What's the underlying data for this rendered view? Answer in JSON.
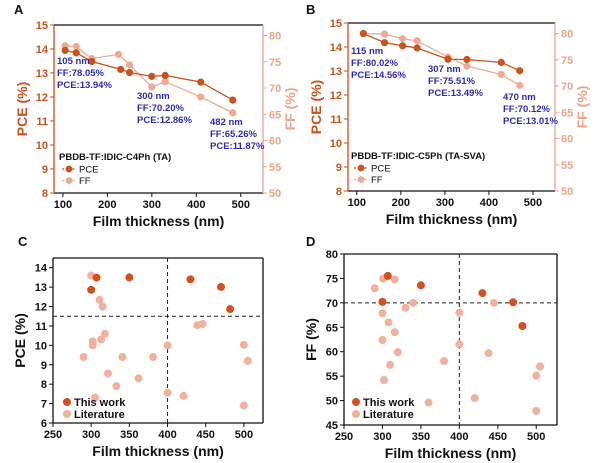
{
  "chart_data": [
    {
      "panel_label": "A",
      "type": "line",
      "xlabel": "Film thickness (nm)",
      "ylabel": "PCE (%)",
      "y2label": "FF (%)",
      "xlim": [
        80,
        550
      ],
      "ylim": [
        8,
        15
      ],
      "y2lim": [
        50,
        82
      ],
      "xticks": [
        100,
        200,
        300,
        400,
        500
      ],
      "yticks": [
        8,
        9,
        10,
        11,
        12,
        13,
        14,
        15
      ],
      "y2ticks": [
        50,
        55,
        60,
        65,
        70,
        75,
        80
      ],
      "legend_title": "PBDB-TF:IDIC-C4Ph (TA)",
      "legend": "bottom-left",
      "series": [
        {
          "name": "PCE",
          "axis": "left",
          "color": "#c9521f",
          "x": [
            105,
            130,
            165,
            230,
            250,
            300,
            330,
            410,
            482
          ],
          "y": [
            13.94,
            13.84,
            13.48,
            13.15,
            13.02,
            12.86,
            12.9,
            12.62,
            11.87
          ]
        },
        {
          "name": "FF",
          "axis": "right",
          "color": "#eeaa94",
          "x": [
            105,
            130,
            165,
            225,
            250,
            300,
            330,
            410,
            482
          ],
          "y": [
            78.05,
            77.9,
            75.6,
            76.4,
            74.4,
            70.2,
            71.2,
            68.3,
            65.26
          ]
        }
      ],
      "annotations": [
        [
          "105 nm",
          "FF:78.05%",
          "PCE:13.94%"
        ],
        [
          "300 nm",
          "FF:70.20%",
          "PCE:12.86%"
        ],
        [
          "482 nm",
          "FF:65.26%",
          "PCE:11.87%"
        ]
      ]
    },
    {
      "panel_label": "B",
      "type": "line",
      "xlabel": "Film thickness (nm)",
      "ylabel": "PCE (%)",
      "y2label": "FF (%)",
      "xlim": [
        80,
        550
      ],
      "ylim": [
        8,
        15
      ],
      "y2lim": [
        50,
        82
      ],
      "xticks": [
        100,
        200,
        300,
        400,
        500
      ],
      "yticks": [
        8,
        9,
        10,
        11,
        12,
        13,
        14,
        15
      ],
      "y2ticks": [
        50,
        55,
        60,
        65,
        70,
        75,
        80
      ],
      "legend_title": "PBDB-TF:IDIC-C5Ph (TA-SVA)",
      "legend": "bottom-left",
      "series": [
        {
          "name": "PCE",
          "axis": "left",
          "color": "#c9521f",
          "x": [
            115,
            163,
            204,
            237,
            307,
            350,
            428,
            470
          ],
          "y": [
            14.56,
            14.18,
            14.05,
            13.96,
            13.49,
            13.48,
            13.36,
            13.01
          ]
        },
        {
          "name": "FF",
          "axis": "right",
          "color": "#eeaa94",
          "x": [
            115,
            163,
            204,
            237,
            307,
            350,
            428,
            470
          ],
          "y": [
            80.02,
            79.9,
            79.0,
            78.6,
            75.51,
            73.8,
            72.2,
            70.12
          ]
        }
      ],
      "annotations": [
        [
          "115 nm",
          "FF:80.02%",
          "PCE:14.56%"
        ],
        [
          "307 nm",
          "FF:75.51%",
          "PCE:13.49%"
        ],
        [
          "470 nm",
          "FF:70.12%",
          "PCE:13.01%"
        ]
      ]
    },
    {
      "panel_label": "C",
      "type": "scatter",
      "xlabel": "Film thickness (nm)",
      "ylabel": "PCE (%)",
      "xlim": [
        250,
        525
      ],
      "ylim": [
        6,
        14.5
      ],
      "xticks": [
        250,
        300,
        350,
        400,
        450,
        500
      ],
      "yticks": [
        6,
        7,
        8,
        9,
        10,
        11,
        12,
        13,
        14
      ],
      "reference_lines": {
        "x": 400,
        "y": 11.5
      },
      "legend": "bottom-left",
      "series": [
        {
          "name": "This work",
          "color": "#d4501f",
          "x": [
            300,
            307,
            350,
            430,
            470,
            482
          ],
          "y": [
            12.86,
            13.49,
            13.5,
            13.4,
            13.01,
            11.87
          ]
        },
        {
          "name": "Literature",
          "color": "#f0b29e",
          "x": [
            300,
            311,
            315,
            318,
            313,
            302,
            302,
            290,
            341,
            381,
            322,
            362,
            333,
            305,
            400,
            400,
            421,
            439,
            446,
            500,
            505,
            500
          ],
          "y": [
            13.6,
            12.34,
            12.0,
            10.6,
            10.3,
            10.2,
            10.0,
            9.4,
            9.4,
            9.4,
            8.55,
            8.3,
            7.9,
            7.3,
            10.0,
            7.56,
            7.4,
            11.04,
            11.1,
            10.03,
            9.2,
            6.9
          ]
        }
      ]
    },
    {
      "panel_label": "D",
      "type": "scatter",
      "xlabel": "Film thickness (nm)",
      "ylabel": "FF (%)",
      "xlim": [
        250,
        527
      ],
      "ylim": [
        45,
        80
      ],
      "xticks": [
        250,
        300,
        350,
        400,
        450,
        500
      ],
      "yticks": [
        45,
        50,
        55,
        60,
        65,
        70,
        75,
        80
      ],
      "reference_lines": {
        "x": 400,
        "y": 70
      },
      "legend": "bottom-left",
      "series": [
        {
          "name": "This work",
          "color": "#d4501f",
          "x": [
            307,
            300,
            350,
            430,
            470,
            482
          ],
          "y": [
            75.51,
            70.2,
            73.6,
            72.0,
            70.12,
            65.26
          ]
        },
        {
          "name": "Literature",
          "color": "#f0b29e",
          "x": [
            301,
            316,
            290,
            300,
            308,
            316,
            300,
            320,
            330,
            340,
            310,
            302,
            360,
            380,
            400,
            400,
            420,
            438,
            445,
            500,
            505,
            500
          ],
          "y": [
            74.95,
            74.8,
            73.0,
            67.9,
            66.0,
            64.0,
            62.4,
            59.9,
            69.0,
            70.0,
            57.3,
            54.2,
            49.6,
            58.1,
            68.0,
            61.5,
            50.5,
            59.7,
            70.0,
            55.1,
            57.0,
            47.9
          ]
        }
      ]
    }
  ]
}
